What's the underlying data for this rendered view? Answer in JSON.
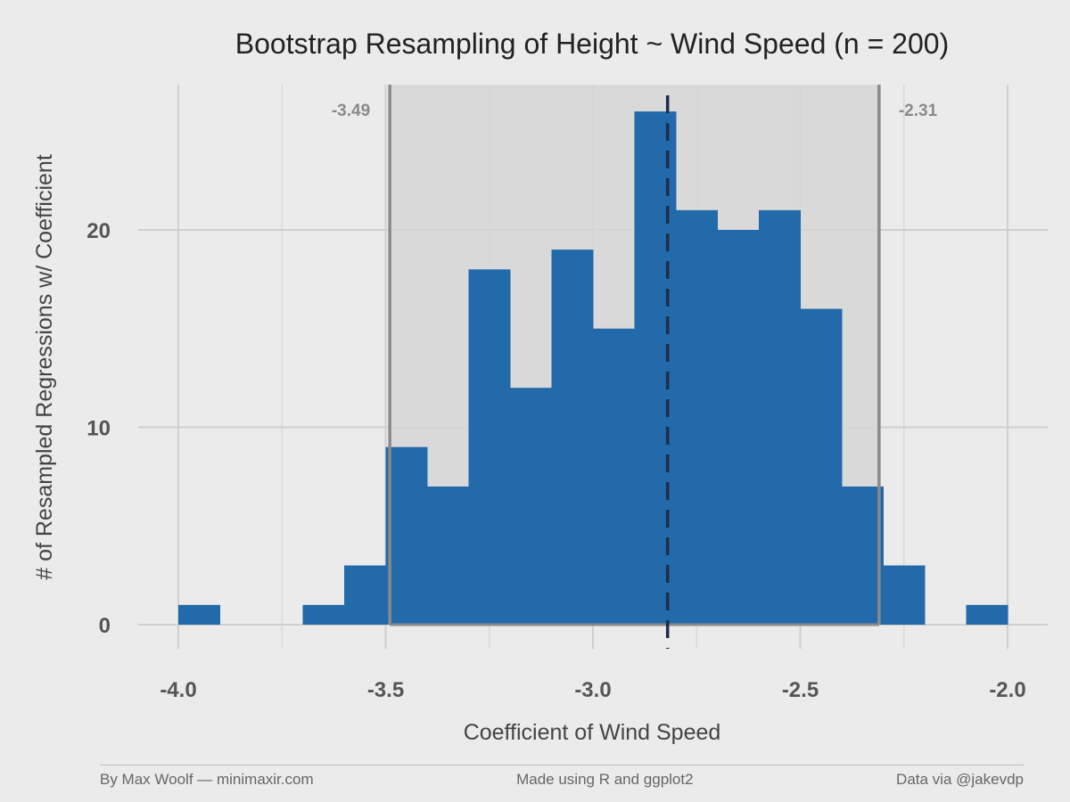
{
  "chart_data": {
    "type": "bar",
    "title": "Bootstrap Resampling of Height ~ Wind Speed (n = 200)",
    "xlabel": "Coefficient of Wind Speed",
    "ylabel": "# of Resampled Regressions w/ Coefficient",
    "xlim": [
      -4.0,
      -2.0
    ],
    "ylim": [
      0,
      26
    ],
    "xticks": [
      -4.0,
      -3.5,
      -3.0,
      -2.5,
      -2.0
    ],
    "xtick_labels": [
      "-4.0",
      "-3.5",
      "-3.0",
      "-2.5",
      "-2.0"
    ],
    "yticks": [
      0,
      10,
      20
    ],
    "ytick_labels": [
      "0",
      "10",
      "20"
    ],
    "bins": [
      {
        "x0": -4.0,
        "x1": -3.9,
        "count": 1
      },
      {
        "x0": -3.9,
        "x1": -3.8,
        "count": 0
      },
      {
        "x0": -3.8,
        "x1": -3.7,
        "count": 0
      },
      {
        "x0": -3.7,
        "x1": -3.6,
        "count": 1
      },
      {
        "x0": -3.6,
        "x1": -3.5,
        "count": 3
      },
      {
        "x0": -3.5,
        "x1": -3.4,
        "count": 9
      },
      {
        "x0": -3.4,
        "x1": -3.3,
        "count": 7
      },
      {
        "x0": -3.3,
        "x1": -3.2,
        "count": 18
      },
      {
        "x0": -3.2,
        "x1": -3.1,
        "count": 12
      },
      {
        "x0": -3.1,
        "x1": -3.0,
        "count": 19
      },
      {
        "x0": -3.0,
        "x1": -2.9,
        "count": 15
      },
      {
        "x0": -2.9,
        "x1": -2.8,
        "count": 26
      },
      {
        "x0": -2.8,
        "x1": -2.7,
        "count": 21
      },
      {
        "x0": -2.7,
        "x1": -2.6,
        "count": 20
      },
      {
        "x0": -2.6,
        "x1": -2.5,
        "count": 21
      },
      {
        "x0": -2.5,
        "x1": -2.4,
        "count": 16
      },
      {
        "x0": -2.4,
        "x1": -2.3,
        "count": 7
      },
      {
        "x0": -2.3,
        "x1": -2.2,
        "count": 3
      },
      {
        "x0": -2.2,
        "x1": -2.1,
        "count": 0
      },
      {
        "x0": -2.1,
        "x1": -2.0,
        "count": 1
      }
    ],
    "ci_lower": -3.49,
    "ci_upper": -2.31,
    "ci_lower_label": "-3.49",
    "ci_upper_label": "-2.31",
    "mean_line": -2.82,
    "bar_color": "#226aaa",
    "ci_fill_color": "#d6d6d6",
    "ci_line_color": "#8a8a8a",
    "mean_line_color": "#1d2e48",
    "grid": true
  },
  "footer": {
    "left": "By Max Woolf — minimaxir.com",
    "center": "Made using R and ggplot2",
    "right": "Data via @jakevdp"
  }
}
